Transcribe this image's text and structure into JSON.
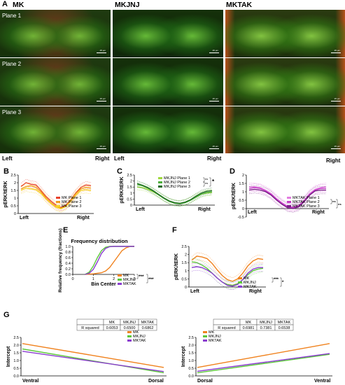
{
  "panel_letters": {
    "A": "A",
    "B": "B",
    "C": "C",
    "D": "D",
    "E": "E",
    "F": "F",
    "G": "G"
  },
  "micrograph": {
    "columns": [
      "MK",
      "MKJNJ",
      "MKTAK"
    ],
    "planes": [
      "Plane 1",
      "Plane 2",
      "Plane 3"
    ],
    "scale_text": "25 µm",
    "left": "Left",
    "right": "Right",
    "colors": {
      "green": "#38b000",
      "red": "#d2321e",
      "bg": "#0d1a08"
    }
  },
  "chart_data": [
    {
      "id": "B",
      "type": "line",
      "ylabel": "pERK/tERK",
      "xlabel_left": "Left",
      "xlabel_right": "Right",
      "yticks": [
        "0",
        "0.5",
        "1",
        "1.5",
        "2",
        "2.5"
      ],
      "ylim": [
        0,
        2.5
      ],
      "series": [
        {
          "name": "MK Plane 1",
          "color": "#e8412b",
          "values": [
            1.75,
            2.0,
            1.9,
            1.85,
            1.5,
            1.1,
            0.8,
            0.55,
            0.4,
            0.55,
            0.9,
            1.35,
            1.7,
            1.85,
            1.8
          ]
        },
        {
          "name": "MK Plane 2",
          "color": "#f29c1e",
          "values": [
            1.6,
            1.75,
            1.8,
            1.7,
            1.4,
            1.0,
            0.7,
            0.45,
            0.35,
            0.5,
            0.85,
            1.3,
            1.6,
            1.7,
            1.65
          ]
        },
        {
          "name": "MK Plane 3",
          "color": "#f6d128",
          "values": [
            1.5,
            1.65,
            1.6,
            1.55,
            1.3,
            0.95,
            0.65,
            0.4,
            0.3,
            0.45,
            0.8,
            1.2,
            1.5,
            1.55,
            1.5
          ]
        }
      ]
    },
    {
      "id": "C",
      "type": "line",
      "ylabel": "pERK/tERK",
      "xlabel_left": "Left",
      "xlabel_right": "Right",
      "yticks": [
        "0",
        "0.5",
        "1",
        "1.5",
        "2",
        "2.5"
      ],
      "ylim": [
        0,
        2.5
      ],
      "sig": [
        "ns",
        "ns",
        "*"
      ],
      "series": [
        {
          "name": "MKJNJ Plane 1",
          "color": "#9ed83a",
          "values": [
            1.5,
            1.45,
            1.3,
            1.1,
            0.85,
            0.55,
            0.35,
            0.2,
            0.15,
            0.25,
            0.45,
            0.7,
            0.9,
            1.0,
            1.05
          ]
        },
        {
          "name": "MKJNJ Plane 2",
          "color": "#4cae3a",
          "values": [
            1.7,
            1.6,
            1.4,
            1.15,
            0.85,
            0.55,
            0.3,
            0.15,
            0.1,
            0.2,
            0.4,
            0.65,
            0.9,
            1.05,
            1.1
          ]
        },
        {
          "name": "MKJNJ Plane 3",
          "color": "#1e6b22",
          "values": [
            1.8,
            1.65,
            1.45,
            1.2,
            0.9,
            0.6,
            0.35,
            0.2,
            0.15,
            0.25,
            0.45,
            0.75,
            1.0,
            1.15,
            1.2
          ]
        }
      ]
    },
    {
      "id": "D",
      "type": "line",
      "ylabel": "pERK/tERK",
      "xlabel_left": "Left",
      "xlabel_right": "Right",
      "yticks": [
        "-0.5",
        "0",
        "0.5",
        "1",
        "1.5",
        "2"
      ],
      "ylim": [
        -0.5,
        2
      ],
      "sig": [
        "ns",
        "ns"
      ],
      "series": [
        {
          "name": "MKTAK Plane 1",
          "color": "#e27ce0",
          "values": [
            1.3,
            1.3,
            1.25,
            1.1,
            0.9,
            0.6,
            0.35,
            0.15,
            0.1,
            0.2,
            0.5,
            0.9,
            1.15,
            1.25,
            1.3
          ]
        },
        {
          "name": "MKTAK Plane 2",
          "color": "#c23cc4",
          "values": [
            1.2,
            1.25,
            1.2,
            1.05,
            0.85,
            0.55,
            0.3,
            0.1,
            0.05,
            0.15,
            0.45,
            0.85,
            1.1,
            1.2,
            1.2
          ]
        },
        {
          "name": "MKTAK Plane 3",
          "color": "#7a1e88",
          "values": [
            1.1,
            1.15,
            1.1,
            1.0,
            0.8,
            0.5,
            0.25,
            0.05,
            0.0,
            0.1,
            0.4,
            0.8,
            1.05,
            1.1,
            1.1
          ]
        }
      ]
    },
    {
      "id": "E",
      "type": "line",
      "title": "Frequency distribution",
      "ylabel": "Relative frequency (fractions)",
      "xlabel": "Bin Center",
      "yticks": [
        "0.0",
        "0.2",
        "0.4",
        "0.6",
        "0.8",
        "1.0"
      ],
      "ylim": [
        0,
        1
      ],
      "xticks": [
        "0",
        "1",
        "2",
        "3"
      ],
      "xlim": [
        0,
        3
      ],
      "sig": [
        "***",
        "***"
      ],
      "series": [
        {
          "name": "MK",
          "color": "#f0821e",
          "x": [
            0.6,
            1.0,
            1.4,
            1.6,
            1.8,
            2.0,
            2.2,
            2.4,
            2.6,
            2.8,
            3.0
          ],
          "values": [
            0,
            0.02,
            0.06,
            0.12,
            0.25,
            0.45,
            0.65,
            0.85,
            0.95,
            1.0,
            1.0
          ]
        },
        {
          "name": "MKJNJ",
          "color": "#5cc83a",
          "x": [
            0.6,
            0.8,
            1.0,
            1.2,
            1.4,
            1.6,
            1.8,
            2.0,
            3.0
          ],
          "values": [
            0,
            0.08,
            0.3,
            0.6,
            0.85,
            0.97,
            1.0,
            1.0,
            1.0
          ]
        },
        {
          "name": "MKTAK",
          "color": "#8a3ccf",
          "x": [
            0.6,
            0.8,
            1.0,
            1.2,
            1.4,
            1.6,
            1.8,
            2.0,
            3.0
          ],
          "values": [
            0,
            0.04,
            0.18,
            0.45,
            0.75,
            0.93,
            0.99,
            1.0,
            1.0
          ]
        }
      ]
    },
    {
      "id": "F",
      "type": "line",
      "ylabel": "pERK/tERK",
      "xlabel_left": "Left",
      "xlabel_right": "Right",
      "yticks": [
        "0",
        "0.5",
        "1",
        "1.5",
        "2",
        "2.5"
      ],
      "ylim": [
        0,
        2.5
      ],
      "sig": [
        "***",
        "*"
      ],
      "series": [
        {
          "name": "MK",
          "color": "#f0821e",
          "values": [
            1.65,
            1.9,
            1.85,
            1.75,
            1.45,
            1.05,
            0.7,
            0.45,
            0.35,
            0.5,
            0.85,
            1.3,
            1.6,
            1.75,
            1.7
          ]
        },
        {
          "name": "MKJNJ",
          "color": "#5cc83a",
          "values": [
            1.55,
            1.5,
            1.35,
            1.15,
            0.85,
            0.55,
            0.3,
            0.15,
            0.1,
            0.2,
            0.45,
            0.75,
            1.0,
            1.1,
            1.15
          ]
        },
        {
          "name": "MKTAK",
          "color": "#8a3ccf",
          "values": [
            1.2,
            1.25,
            1.2,
            1.05,
            0.85,
            0.55,
            0.3,
            0.1,
            0.05,
            0.15,
            0.45,
            0.85,
            1.1,
            1.2,
            1.2
          ]
        }
      ]
    },
    {
      "id": "G1",
      "type": "line",
      "ylabel": "Intercept",
      "xlabel_left": "Ventral",
      "xlabel_right": "Dorsal",
      "yticks": [
        "0.0",
        "0.5",
        "1.0",
        "1.5",
        "2.0",
        "2.5"
      ],
      "ylim": [
        0,
        2.5
      ],
      "table": {
        "header": [
          "",
          "MK",
          "MKJNJ",
          "MKTAK"
        ],
        "row": [
          "R squared",
          "0.6053",
          "0.6500",
          "0.6862"
        ]
      },
      "series": [
        {
          "name": "MK",
          "color": "#f0821e",
          "values": [
            2.1,
            0.55
          ]
        },
        {
          "name": "MKJNJ",
          "color": "#5cc83a",
          "values": [
            1.75,
            0.2
          ]
        },
        {
          "name": "MKTAK",
          "color": "#8a3ccf",
          "values": [
            1.6,
            0.28
          ]
        }
      ]
    },
    {
      "id": "G2",
      "type": "line",
      "ylabel": "Intercept",
      "xlabel_left": "Dorsal",
      "xlabel_right": "Ventral",
      "yticks": [
        "0.0",
        "0.5",
        "1.0",
        "1.5",
        "2.0",
        "2.5"
      ],
      "ylim": [
        0,
        2.5
      ],
      "table": {
        "header": [
          "",
          "MK",
          "MKJNJ",
          "MKTAK"
        ],
        "row": [
          "R squared",
          "0.6981",
          "0.7381",
          "0.6538"
        ]
      },
      "series": [
        {
          "name": "MK",
          "color": "#f0821e",
          "values": [
            0.55,
            2.1
          ]
        },
        {
          "name": "MKJNJ",
          "color": "#5cc83a",
          "values": [
            0.2,
            1.4
          ]
        },
        {
          "name": "MKTAK",
          "color": "#8a3ccf",
          "values": [
            0.3,
            1.45
          ]
        }
      ]
    }
  ]
}
